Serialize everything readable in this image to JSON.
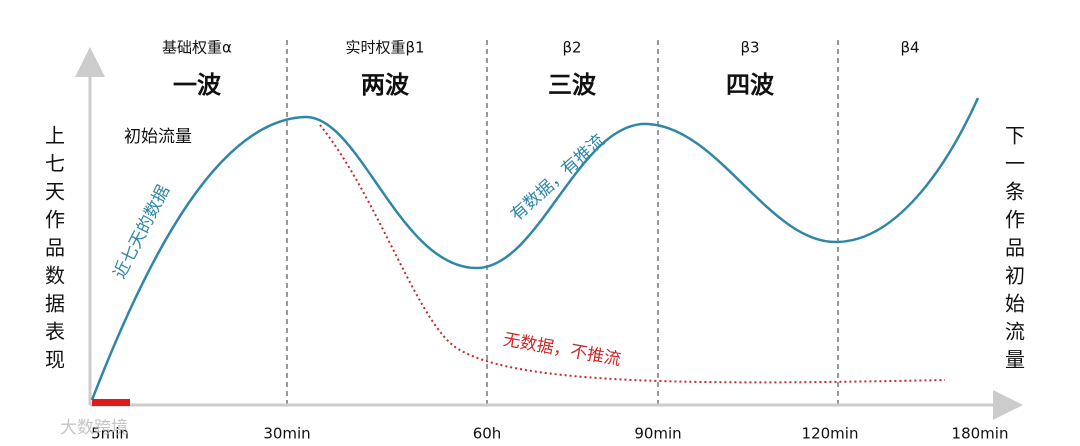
{
  "sections": [
    {
      "weight": "基础权重α",
      "wave": "一波"
    },
    {
      "weight": "实时权重β1",
      "wave": "两波"
    },
    {
      "weight": "β2",
      "wave": "三波"
    },
    {
      "weight": "β3",
      "wave": "四波"
    },
    {
      "weight": "β4"
    }
  ],
  "initial_traffic": "初始流量",
  "left_axis_label": "上七天作品数据表现",
  "right_axis_label": "下一条作品初始流量",
  "curve_labels": {
    "recent": "近七天的数据",
    "with_data": "有数据，有推流",
    "no_data": "无数据，不推流"
  },
  "x_labels": [
    "5min",
    "30min",
    "60h",
    "90min",
    "120min",
    "180min"
  ],
  "watermark": "大数跨境"
}
